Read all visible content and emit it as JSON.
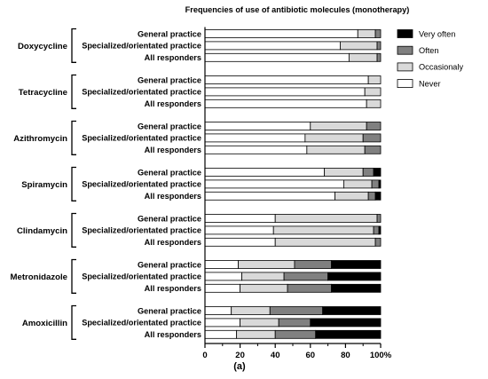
{
  "chart_data": {
    "type": "bar",
    "orientation": "horizontal",
    "stacked": true,
    "title": "Frequencies of use of antibiotic molecules (monotherapy)",
    "panel_label": "(a)",
    "xlim": [
      0,
      100
    ],
    "xticks": [
      0,
      20,
      40,
      60,
      80,
      100
    ],
    "xtick_labels": [
      "0",
      "20",
      "40",
      "60",
      "80",
      "100%"
    ],
    "grid": false,
    "legend_position": "top-right",
    "series": [
      {
        "name": "Never",
        "color": "#ffffff"
      },
      {
        "name": "Occasionaly",
        "color": "#d9d9d9"
      },
      {
        "name": "Often",
        "color": "#808080"
      },
      {
        "name": "Very often",
        "color": "#000000"
      }
    ],
    "groups": [
      {
        "name": "Doxycycline",
        "bars": [
          {
            "label": "General practice",
            "values": [
              87,
              10,
              3,
              0
            ]
          },
          {
            "label": "Specialized/orientated practice",
            "values": [
              77,
              21,
              2,
              0
            ]
          },
          {
            "label": "All responders",
            "values": [
              82,
              16,
              2,
              0
            ]
          }
        ]
      },
      {
        "name": "Tetracycline",
        "bars": [
          {
            "label": "General practice",
            "values": [
              93,
              7,
              0,
              0
            ]
          },
          {
            "label": "Specialized/orientated practice",
            "values": [
              91,
              9,
              0,
              0
            ]
          },
          {
            "label": "All responders",
            "values": [
              92,
              8,
              0,
              0
            ]
          }
        ]
      },
      {
        "name": "Azithromycin",
        "bars": [
          {
            "label": "General practice",
            "values": [
              60,
              32,
              8,
              0
            ]
          },
          {
            "label": "Specialized/orientated practice",
            "values": [
              57,
              33,
              10,
              0
            ]
          },
          {
            "label": "All responders",
            "values": [
              58,
              33,
              9,
              0
            ]
          }
        ]
      },
      {
        "name": "Spiramycin",
        "bars": [
          {
            "label": "General practice",
            "values": [
              68,
              22,
              6,
              4
            ]
          },
          {
            "label": "Specialized/orientated practice",
            "values": [
              79,
              16,
              4,
              1
            ]
          },
          {
            "label": "All responders",
            "values": [
              74,
              19,
              4,
              3
            ]
          }
        ]
      },
      {
        "name": "Clindamycin",
        "bars": [
          {
            "label": "General practice",
            "values": [
              40,
              58,
              2,
              0
            ]
          },
          {
            "label": "Specialized/orientated practice",
            "values": [
              39,
              57,
              3,
              1
            ]
          },
          {
            "label": "All responders",
            "values": [
              40,
              57,
              3,
              0
            ]
          }
        ]
      },
      {
        "name": "Metronidazole",
        "bars": [
          {
            "label": "General practice",
            "values": [
              19,
              32,
              21,
              28
            ]
          },
          {
            "label": "Specialized/orientated practice",
            "values": [
              21,
              24,
              25,
              30
            ]
          },
          {
            "label": "All responders",
            "values": [
              20,
              27,
              25,
              28
            ]
          }
        ]
      },
      {
        "name": "Amoxicillin",
        "bars": [
          {
            "label": "General practice",
            "values": [
              15,
              22,
              30,
              33
            ]
          },
          {
            "label": "Specialized/orientated practice",
            "values": [
              20,
              22,
              18,
              40
            ]
          },
          {
            "label": "All responders",
            "values": [
              18,
              22,
              23,
              37
            ]
          }
        ]
      }
    ]
  }
}
